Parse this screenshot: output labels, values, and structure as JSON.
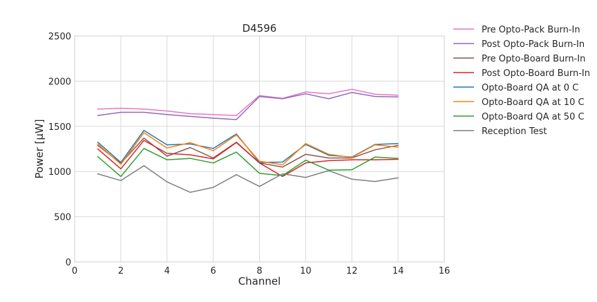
{
  "chart_data": {
    "type": "line",
    "title": "D4596",
    "xlabel": "Channel",
    "ylabel": "Power [μW]",
    "xlim": [
      0,
      16
    ],
    "ylim": [
      0,
      2500
    ],
    "xticks": [
      0,
      2,
      4,
      6,
      8,
      10,
      12,
      14,
      16
    ],
    "yticks": [
      0,
      500,
      1000,
      1500,
      2000,
      2500
    ],
    "grid": true,
    "legend_position": "outside-right",
    "x": [
      1,
      2,
      3,
      4,
      5,
      6,
      7,
      8,
      9,
      10,
      11,
      12,
      13,
      14
    ],
    "series": [
      {
        "name": "Pre Opto-Pack Burn-In",
        "color": "#e377c2",
        "values": [
          1690,
          1700,
          1690,
          1670,
          1640,
          1630,
          1620,
          1840,
          1810,
          1880,
          1860,
          1910,
          1855,
          1845
        ]
      },
      {
        "name": "Post Opto-Pack Burn-In",
        "color": "#9467bd",
        "values": [
          1620,
          1655,
          1655,
          1630,
          1610,
          1590,
          1575,
          1830,
          1805,
          1860,
          1805,
          1875,
          1830,
          1825
        ]
      },
      {
        "name": "Pre Opto-Board Burn-In",
        "color": "#8c564b",
        "values": [
          1290,
          1090,
          1370,
          1170,
          1265,
          1150,
          1325,
          1095,
          1050,
          1190,
          1150,
          1150,
          1240,
          1290
        ]
      },
      {
        "name": "Post Opto-Board Burn-In",
        "color": "#d62728",
        "values": [
          1250,
          1030,
          1345,
          1200,
          1185,
          1140,
          1320,
          1095,
          945,
          1095,
          1120,
          1130,
          1130,
          1135
        ]
      },
      {
        "name": "Opto-Board QA at 0 C",
        "color": "#1f77b4",
        "values": [
          1325,
          1100,
          1455,
          1295,
          1305,
          1255,
          1415,
          1100,
          1105,
          1300,
          1180,
          1160,
          1300,
          1310
        ]
      },
      {
        "name": "Opto-Board QA at 10 C",
        "color": "#ff7f0e",
        "values": [
          1305,
          1080,
          1430,
          1260,
          1320,
          1230,
          1405,
          1115,
          1075,
          1310,
          1190,
          1155,
          1295,
          1270
        ]
      },
      {
        "name": "Opto-Board QA at 50 C",
        "color": "#2ca02c",
        "values": [
          1165,
          945,
          1255,
          1130,
          1145,
          1095,
          1215,
          980,
          955,
          1125,
          1015,
          1020,
          1160,
          1145
        ]
      },
      {
        "name": "Reception Test",
        "color": "#7f7f7f",
        "values": [
          975,
          900,
          1065,
          885,
          770,
          825,
          965,
          835,
          975,
          935,
          1010,
          915,
          890,
          930
        ]
      }
    ]
  }
}
